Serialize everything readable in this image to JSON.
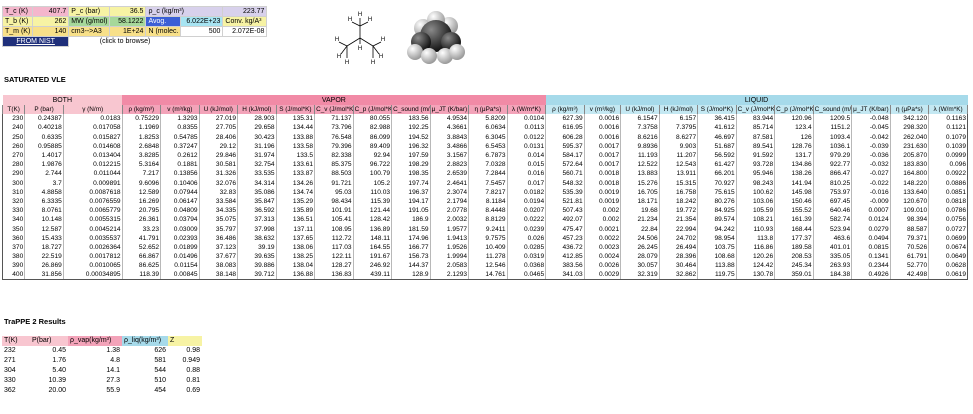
{
  "props": {
    "tc_label": "T_c (K)",
    "tc_value": "407.7",
    "pc_label": "P_c (bar)",
    "pc_value": "36.5",
    "rhoc_label": "ρ_c (kg/m³)",
    "rhoc_value": "223.77",
    "tb_label": "T_b (K)",
    "tb_value": "262",
    "mw_label": "MW (g/mol)",
    "mw_value": "58.1222",
    "avog_label": "Avog.",
    "avog_value": "6.022E+23",
    "conv_label": "Conv. kg/A³",
    "tm_label": "T_m (K)",
    "tm_value": "140",
    "cm3_label": "cm3-->A3",
    "cm3_value": "1E+24",
    "nmolec_label": "N (molec.",
    "nmolec_value": "500",
    "nmolec_extra": "2.072E-08",
    "from_nist": "FROM NIST",
    "browse": "(click to browse)"
  },
  "sections": {
    "saturated": "SATURATED VLE",
    "trappe": "TraPPE 2 Results"
  },
  "groups": {
    "both": "BOTH",
    "vapor": "VAPOR",
    "liquid": "LIQUID"
  },
  "headers": [
    "T(K)",
    "P (bar)",
    "γ (N/m)",
    "ρ (kg/m³)",
    "v (m³/kg)",
    "U (kJ/mol)",
    "H (kJ/mol)",
    "S (J/mol*K)",
    "C_v (J/mol*K)",
    "C_p (J/mol*K)",
    "C_sound (m/s)",
    "μ_JT (K/bar)",
    "η (μPa*s)",
    "λ (W/m*K)",
    "ρ (kg/m³)",
    "v (m³/kg)",
    "U (kJ/mol)",
    "H (kJ/mol)",
    "S (J/mol*K)",
    "C_v (J/mol*K)",
    "C_p (J/mol*K)",
    "C_sound (m/s)",
    "μ_JT (K/bar)",
    "η (μPa*s)",
    "λ (W/m*K)"
  ],
  "rows": [
    [
      "230",
      "0.24387",
      "0.0183",
      "0.75229",
      "1.3293",
      "27.019",
      "28.903",
      "135.31",
      "71.137",
      "80.055",
      "183.56",
      "4.9534",
      "5.8209",
      "0.0104",
      "627.39",
      "0.0016",
      "6.1547",
      "6.157",
      "36.415",
      "83.944",
      "120.96",
      "1209.5",
      "-0.048",
      "342.120",
      "0.1163"
    ],
    [
      "240",
      "0.40218",
      "0.017058",
      "1.1969",
      "0.8355",
      "27.705",
      "29.658",
      "134.44",
      "73.796",
      "82.988",
      "192.25",
      "4.3661",
      "6.0634",
      "0.0113",
      "616.95",
      "0.0016",
      "7.3758",
      "7.3795",
      "41.612",
      "85.714",
      "123.4",
      "1151.2",
      "-0.045",
      "298.320",
      "0.1121"
    ],
    [
      "250",
      "0.6335",
      "0.015827",
      "1.8253",
      "0.54785",
      "28.406",
      "30.423",
      "133.88",
      "76.548",
      "86.099",
      "194.52",
      "3.8843",
      "6.3045",
      "0.0122",
      "606.28",
      "0.0016",
      "8.6216",
      "8.6277",
      "46.697",
      "87.581",
      "126",
      "1093.4",
      "-0.042",
      "262.040",
      "0.1079"
    ],
    [
      "260",
      "0.95885",
      "0.014608",
      "2.6848",
      "0.37247",
      "29.12",
      "31.196",
      "133.58",
      "79.396",
      "89.409",
      "196.32",
      "3.4866",
      "6.5453",
      "0.0131",
      "595.37",
      "0.0017",
      "9.8936",
      "9.903",
      "51.687",
      "89.541",
      "128.76",
      "1036.1",
      "-0.039",
      "231.630",
      "0.1039"
    ],
    [
      "270",
      "1.4017",
      "0.013404",
      "3.8285",
      "0.2612",
      "29.846",
      "31.974",
      "133.5",
      "82.338",
      "92.94",
      "197.59",
      "3.1567",
      "6.7873",
      "0.014",
      "584.17",
      "0.0017",
      "11.193",
      "11.207",
      "56.592",
      "91.592",
      "131.7",
      "979.29",
      "-0.036",
      "205.870",
      "0.0999"
    ],
    [
      "280",
      "1.9876",
      "0.012215",
      "5.3164",
      "0.1881",
      "30.581",
      "32.754",
      "133.61",
      "85.375",
      "96.722",
      "198.29",
      "2.8823",
      "7.0328",
      "0.015",
      "572.64",
      "0.0017",
      "12.522",
      "12.543",
      "61.427",
      "93.728",
      "134.86",
      "922.77",
      "-0.032",
      "183.830",
      "0.096"
    ],
    [
      "290",
      "2.744",
      "0.011044",
      "7.217",
      "0.13856",
      "31.326",
      "33.535",
      "133.87",
      "88.503",
      "100.79",
      "198.35",
      "2.6539",
      "7.2844",
      "0.016",
      "560.71",
      "0.0018",
      "13.883",
      "13.911",
      "66.201",
      "95.946",
      "138.26",
      "866.47",
      "-0.027",
      "164.800",
      "0.0922"
    ],
    [
      "300",
      "3.7",
      "0.009891",
      "9.6096",
      "0.10406",
      "32.076",
      "34.314",
      "134.26",
      "91.721",
      "105.2",
      "197.74",
      "2.4641",
      "7.5457",
      "0.017",
      "548.32",
      "0.0018",
      "15.276",
      "15.315",
      "70.927",
      "98.243",
      "141.94",
      "810.25",
      "-0.022",
      "148.220",
      "0.0886"
    ],
    [
      "310",
      "4.8858",
      "0.0087618",
      "12.589",
      "0.07944",
      "32.83",
      "35.086",
      "134.74",
      "95.03",
      "110.03",
      "196.37",
      "2.3074",
      "7.8217",
      "0.0182",
      "535.39",
      "0.0019",
      "16.705",
      "16.758",
      "75.615",
      "100.62",
      "145.98",
      "753.97",
      "-0.016",
      "133.640",
      "0.0851"
    ],
    [
      "320",
      "6.3335",
      "0.0076559",
      "16.269",
      "0.06147",
      "33.584",
      "35.847",
      "135.29",
      "98.434",
      "115.39",
      "194.17",
      "2.1794",
      "8.1184",
      "0.0194",
      "521.81",
      "0.0019",
      "18.171",
      "18.242",
      "80.276",
      "103.06",
      "150.46",
      "697.45",
      "-0.009",
      "120.670",
      "0.0818"
    ],
    [
      "330",
      "8.0761",
      "0.0065779",
      "20.795",
      "0.04809",
      "34.335",
      "36.592",
      "135.89",
      "101.91",
      "121.44",
      "191.05",
      "2.0778",
      "8.4448",
      "0.0207",
      "507.43",
      "0.002",
      "19.68",
      "19.772",
      "84.925",
      "105.59",
      "155.52",
      "640.46",
      "0.0007",
      "109.010",
      "0.0786"
    ],
    [
      "340",
      "10.148",
      "0.0055315",
      "26.361",
      "0.03794",
      "35.075",
      "37.313",
      "136.51",
      "105.41",
      "128.42",
      "186.9",
      "2.0032",
      "8.8129",
      "0.0222",
      "492.07",
      "0.002",
      "21.234",
      "21.354",
      "89.574",
      "108.21",
      "161.39",
      "582.74",
      "0.0124",
      "98.394",
      "0.0756"
    ],
    [
      "350",
      "12.587",
      "0.0045214",
      "33.23",
      "0.03009",
      "35.797",
      "37.998",
      "137.11",
      "108.95",
      "136.89",
      "181.59",
      "1.9577",
      "9.2411",
      "0.0239",
      "475.47",
      "0.0021",
      "22.84",
      "22.994",
      "94.242",
      "110.93",
      "168.44",
      "523.94",
      "0.0279",
      "88.587",
      "0.0727"
    ],
    [
      "360",
      "15.433",
      "0.0035537",
      "41.791",
      "0.02393",
      "36.486",
      "38.632",
      "137.65",
      "112.72",
      "148.11",
      "174.96",
      "1.9413",
      "9.7575",
      "0.026",
      "457.23",
      "0.0022",
      "24.506",
      "24.702",
      "98.954",
      "113.8",
      "177.37",
      "463.6",
      "0.0494",
      "79.371",
      "0.0699"
    ],
    [
      "370",
      "18.727",
      "0.0026364",
      "52.652",
      "0.01899",
      "37.123",
      "39.19",
      "138.06",
      "117.03",
      "164.55",
      "166.77",
      "1.9526",
      "10.409",
      "0.0285",
      "436.72",
      "0.0023",
      "26.245",
      "26.494",
      "103.75",
      "116.86",
      "189.58",
      "401.01",
      "0.0815",
      "70.526",
      "0.0674"
    ],
    [
      "380",
      "22.519",
      "0.0017812",
      "66.867",
      "0.01496",
      "37.677",
      "39.635",
      "138.25",
      "122.11",
      "191.67",
      "156.73",
      "1.9994",
      "11.278",
      "0.0319",
      "412.85",
      "0.0024",
      "28.079",
      "28.396",
      "108.68",
      "120.26",
      "208.53",
      "335.05",
      "0.1341",
      "61.791",
      "0.0649"
    ],
    [
      "390",
      "26.869",
      "0.0010065",
      "86.625",
      "0.01154",
      "38.083",
      "39.886",
      "138.04",
      "128.27",
      "246.92",
      "144.37",
      "2.0583",
      "12.546",
      "0.0368",
      "383.56",
      "0.0026",
      "30.057",
      "30.464",
      "113.88",
      "124.42",
      "245.34",
      "263.93",
      "0.2344",
      "52.770",
      "0.0628"
    ],
    [
      "400",
      "31.856",
      "0.00034895",
      "118.39",
      "0.00845",
      "38.148",
      "39.712",
      "136.88",
      "136.83",
      "439.11",
      "128.9",
      "2.1293",
      "14.761",
      "0.0465",
      "341.03",
      "0.0029",
      "32.319",
      "32.862",
      "119.75",
      "130.78",
      "359.01",
      "184.38",
      "0.4926",
      "42.498",
      "0.0619"
    ]
  ],
  "trappe": {
    "headers": [
      "T(K)",
      "P(bar)",
      "ρ_vap(kg/m³)",
      "ρ_liq(kg/m³)",
      "Z"
    ],
    "rows": [
      [
        "232",
        "0.45",
        "1.38",
        "626",
        "0.98"
      ],
      [
        "271",
        "1.76",
        "4.8",
        "581",
        "0.949"
      ],
      [
        "304",
        "5.40",
        "14.1",
        "544",
        "0.88"
      ],
      [
        "330",
        "10.39",
        "27.3",
        "510",
        "0.81"
      ],
      [
        "362",
        "20.00",
        "55.9",
        "454",
        "0.69"
      ]
    ]
  }
}
